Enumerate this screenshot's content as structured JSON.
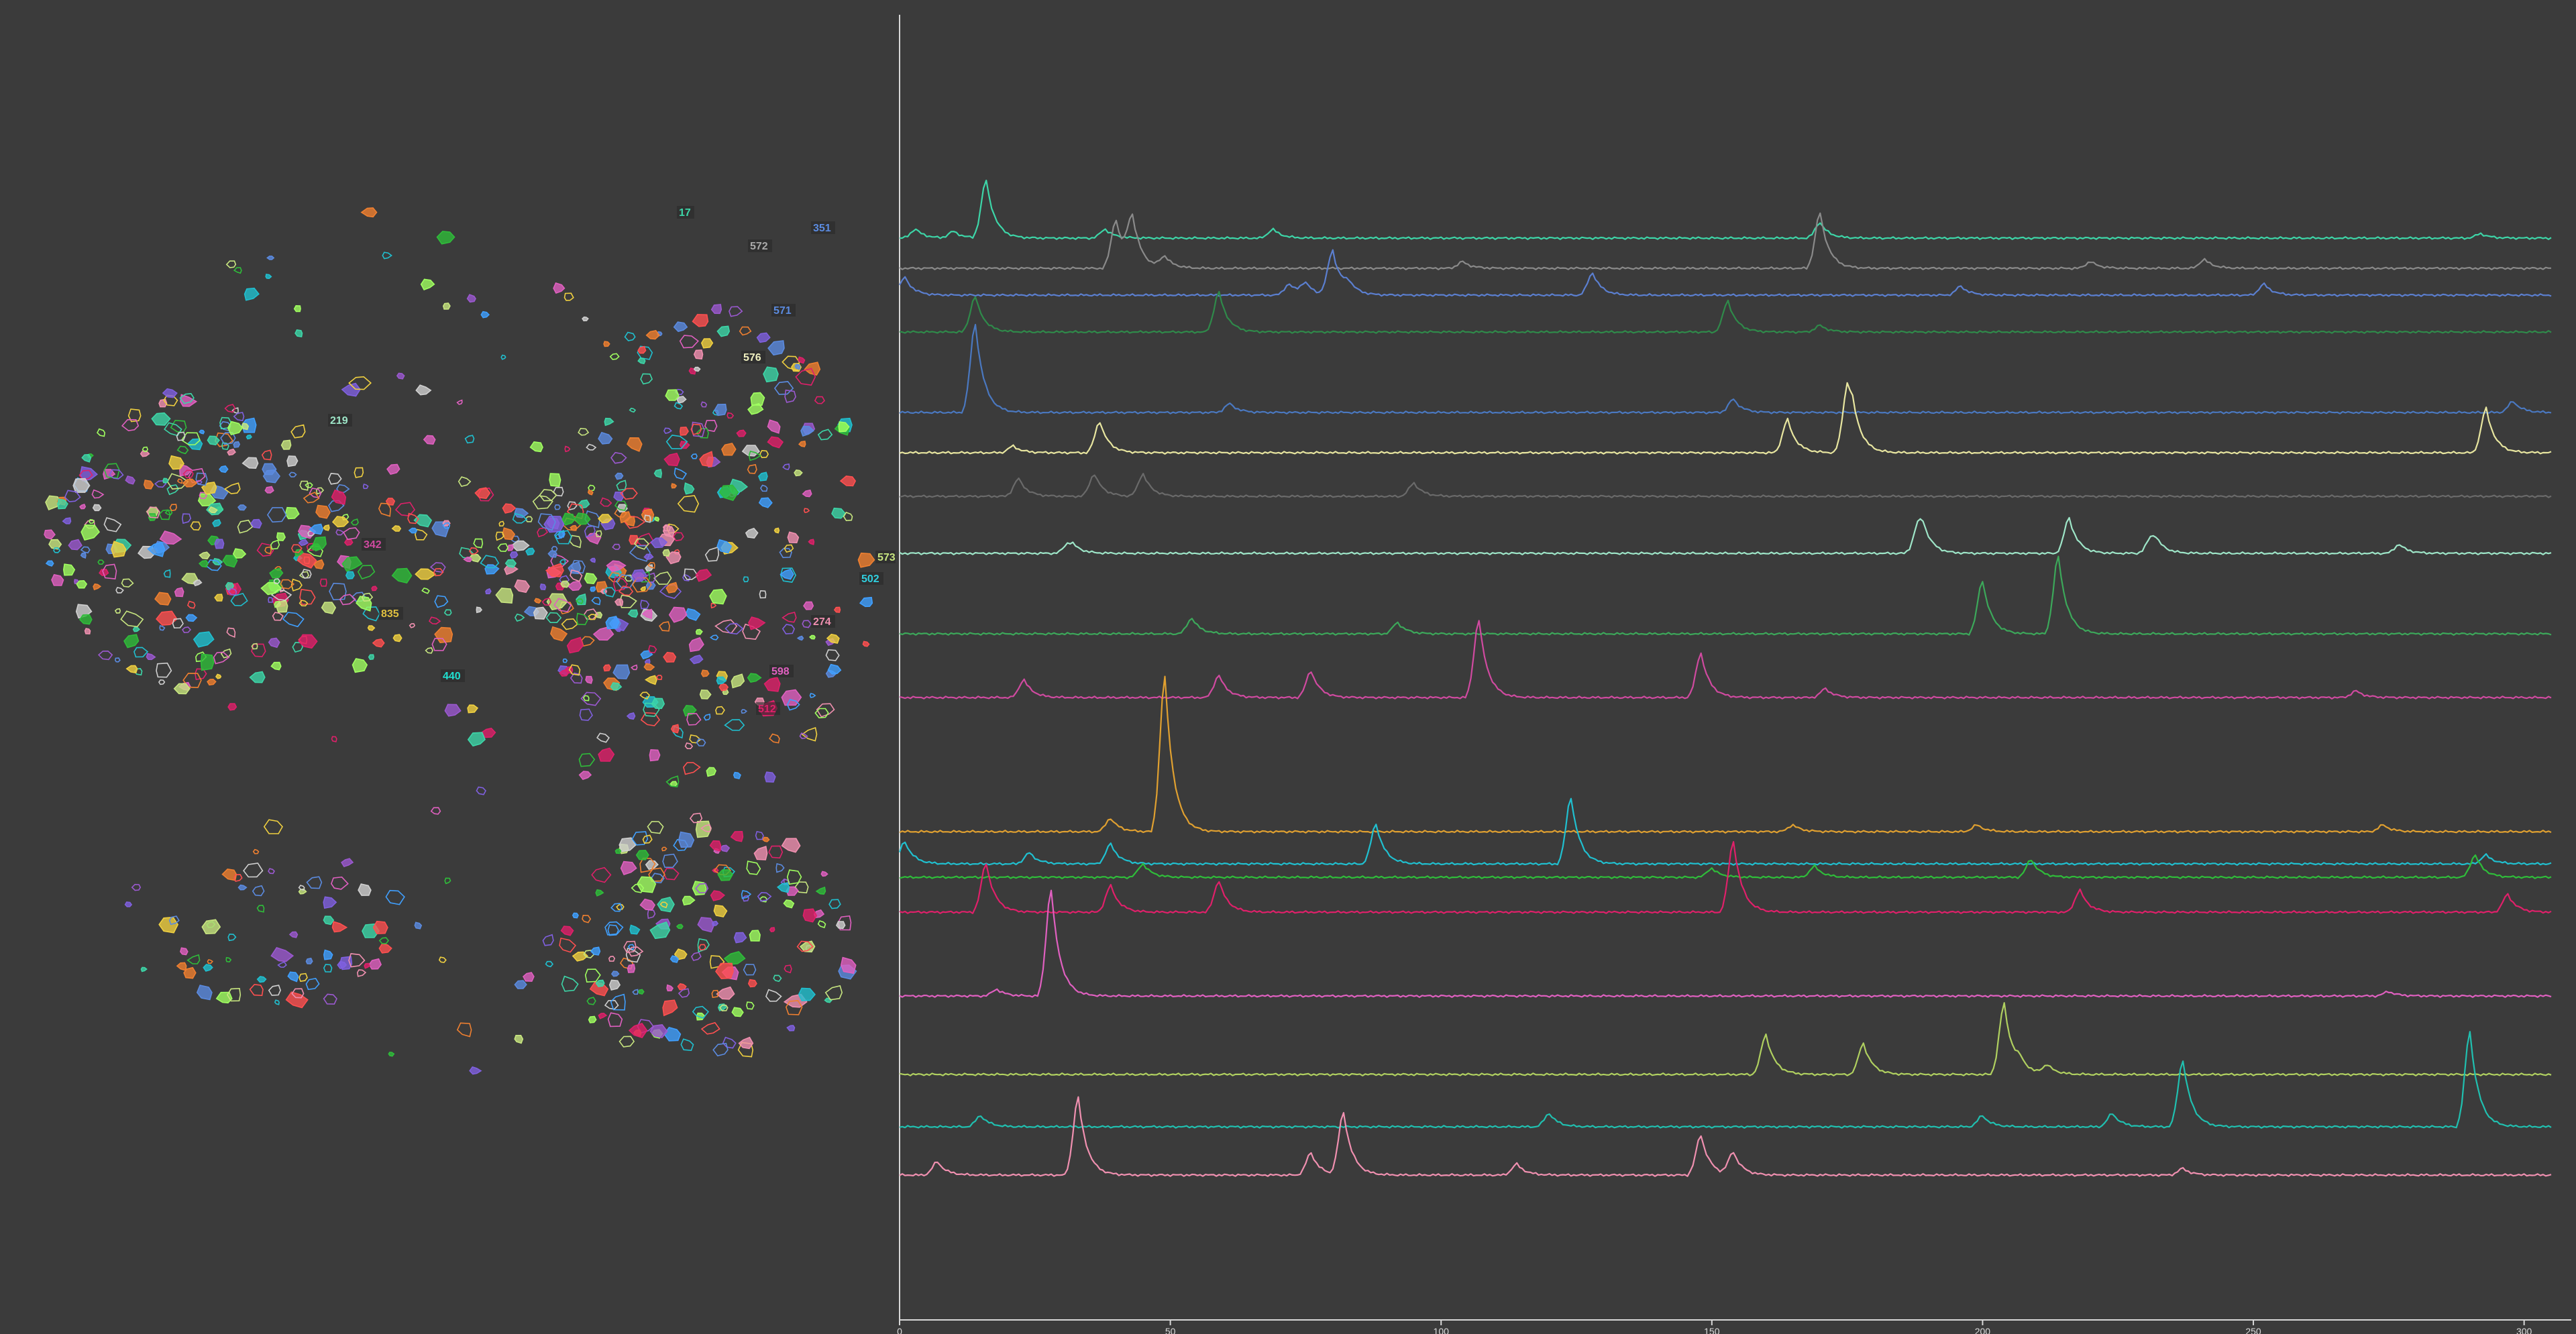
{
  "colors": {
    "background": "#3b3b3b",
    "axis": "#d8d8d8",
    "trace_palette": [
      "#3dd6a8",
      "#8a8a8a",
      "#5b7fd0",
      "#2f8a4a",
      "#4a78c0",
      "#e8e6a0",
      "#6a6a6a",
      "#9ee6c8",
      "#3ca85a",
      "#d04aa0",
      "#e0a030",
      "#20c0d0",
      "#2fbd3a",
      "#e0206a",
      "#e060c0",
      "#b0d060",
      "#20c0b0",
      "#f090b0"
    ]
  },
  "roi_map": {
    "labels": [
      {
        "text": "17",
        "color": "#3dd6a8"
      },
      {
        "text": "351",
        "color": "#5b8be0"
      },
      {
        "text": "572",
        "color": "#aaaaaa"
      },
      {
        "text": "571",
        "color": "#5b8be0"
      },
      {
        "text": "576",
        "color": "#f0f0c0"
      },
      {
        "text": "219",
        "color": "#9ee6c8"
      },
      {
        "text": "342",
        "color": "#d04aa0"
      },
      {
        "text": "573",
        "color": "#c8e680"
      },
      {
        "text": "502",
        "color": "#30d0e0"
      },
      {
        "text": "835",
        "color": "#e0c040"
      },
      {
        "text": "274",
        "color": "#f090b0"
      },
      {
        "text": "440",
        "color": "#20e0d0"
      },
      {
        "text": "598",
        "color": "#e060c0"
      },
      {
        "text": "512",
        "color": "#e0206a"
      }
    ]
  },
  "chart_data": {
    "type": "line",
    "title": "",
    "xlabel": "",
    "ylabel": "",
    "x_ticks": [
      "0",
      "50",
      "100",
      "150",
      "200",
      "250",
      "300"
    ],
    "xlim": [
      0,
      305
    ],
    "series": [
      {
        "color": "#3dd6a8",
        "peaks": [
          [
            3,
            4
          ],
          [
            10,
            3
          ],
          [
            16,
            26
          ],
          [
            38,
            4
          ],
          [
            69,
            4
          ],
          [
            170,
            7
          ],
          [
            292,
            2
          ]
        ]
      },
      {
        "color": "#8a8a8a",
        "peaks": [
          [
            40,
            22
          ],
          [
            43,
            21
          ],
          [
            49,
            5
          ],
          [
            104,
            3
          ],
          [
            170,
            25
          ],
          [
            220,
            3
          ],
          [
            241,
            4
          ]
        ]
      },
      {
        "color": "#5b7fd0",
        "peaks": [
          [
            1,
            8
          ],
          [
            72,
            5
          ],
          [
            75,
            5
          ],
          [
            80,
            20
          ],
          [
            83,
            4
          ],
          [
            128,
            10
          ],
          [
            196,
            4
          ],
          [
            252,
            5
          ]
        ]
      },
      {
        "color": "#2f8a4a",
        "peaks": [
          [
            14,
            16
          ],
          [
            59,
            18
          ],
          [
            153,
            14
          ],
          [
            170,
            3
          ]
        ]
      },
      {
        "color": "#4a78c0",
        "peaks": [
          [
            14,
            40
          ],
          [
            61,
            4
          ],
          [
            154,
            6
          ],
          [
            298,
            5
          ]
        ]
      },
      {
        "color": "#e8e6a0",
        "peaks": [
          [
            21,
            3
          ],
          [
            37,
            14
          ],
          [
            164,
            15
          ],
          [
            175,
            25
          ],
          [
            176,
            12
          ],
          [
            293,
            20
          ]
        ]
      },
      {
        "color": "#6a6a6a",
        "peaks": [
          [
            22,
            8
          ],
          [
            36,
            10
          ],
          [
            45,
            10
          ],
          [
            95,
            6
          ]
        ]
      },
      {
        "color": "#9ee6c8",
        "peaks": [
          [
            31,
            3
          ],
          [
            32,
            3
          ],
          [
            188,
            9
          ],
          [
            189,
            10
          ],
          [
            216,
            16
          ],
          [
            231,
            5
          ],
          [
            232,
            5
          ],
          [
            277,
            4
          ]
        ]
      },
      {
        "color": "#3ca85a",
        "peaks": [
          [
            54,
            7
          ],
          [
            92,
            5
          ],
          [
            200,
            24
          ],
          [
            214,
            35
          ]
        ]
      },
      {
        "color": "#d04aa0",
        "peaks": [
          [
            23,
            8
          ],
          [
            59,
            10
          ],
          [
            76,
            12
          ],
          [
            107,
            35
          ],
          [
            148,
            20
          ],
          [
            171,
            4
          ],
          [
            269,
            3
          ]
        ]
      },
      {
        "color": "#e0a030",
        "peaks": [
          [
            49,
            70
          ],
          [
            39,
            6
          ],
          [
            165,
            3
          ],
          [
            199,
            3
          ],
          [
            274,
            3
          ]
        ]
      },
      {
        "color": "#20c0d0",
        "peaks": [
          [
            1,
            10
          ],
          [
            24,
            5
          ],
          [
            39,
            9
          ],
          [
            88,
            18
          ],
          [
            124,
            30
          ],
          [
            293,
            4
          ]
        ]
      },
      {
        "color": "#2fbd3a",
        "peaks": [
          [
            45,
            6
          ],
          [
            150,
            4
          ],
          [
            169,
            5
          ],
          [
            209,
            8
          ],
          [
            291,
            10
          ]
        ]
      },
      {
        "color": "#e0206a",
        "peaks": [
          [
            16,
            22
          ],
          [
            39,
            12
          ],
          [
            59,
            14
          ],
          [
            154,
            32
          ],
          [
            218,
            10
          ],
          [
            297,
            8
          ]
        ]
      },
      {
        "color": "#e060c0",
        "peaks": [
          [
            28,
            48
          ],
          [
            18,
            3
          ],
          [
            275,
            2
          ]
        ]
      },
      {
        "color": "#b0d060",
        "peaks": [
          [
            160,
            18
          ],
          [
            178,
            14
          ],
          [
            204,
            32
          ],
          [
            207,
            4
          ],
          [
            212,
            4
          ]
        ]
      },
      {
        "color": "#20c0b0",
        "peaks": [
          [
            15,
            5
          ],
          [
            120,
            6
          ],
          [
            200,
            5
          ],
          [
            224,
            6
          ],
          [
            237,
            30
          ],
          [
            290,
            43
          ]
        ]
      },
      {
        "color": "#f090b0",
        "peaks": [
          [
            7,
            6
          ],
          [
            33,
            35
          ],
          [
            76,
            10
          ],
          [
            82,
            28
          ],
          [
            114,
            5
          ],
          [
            148,
            18
          ],
          [
            154,
            10
          ],
          [
            237,
            3
          ]
        ]
      }
    ]
  }
}
